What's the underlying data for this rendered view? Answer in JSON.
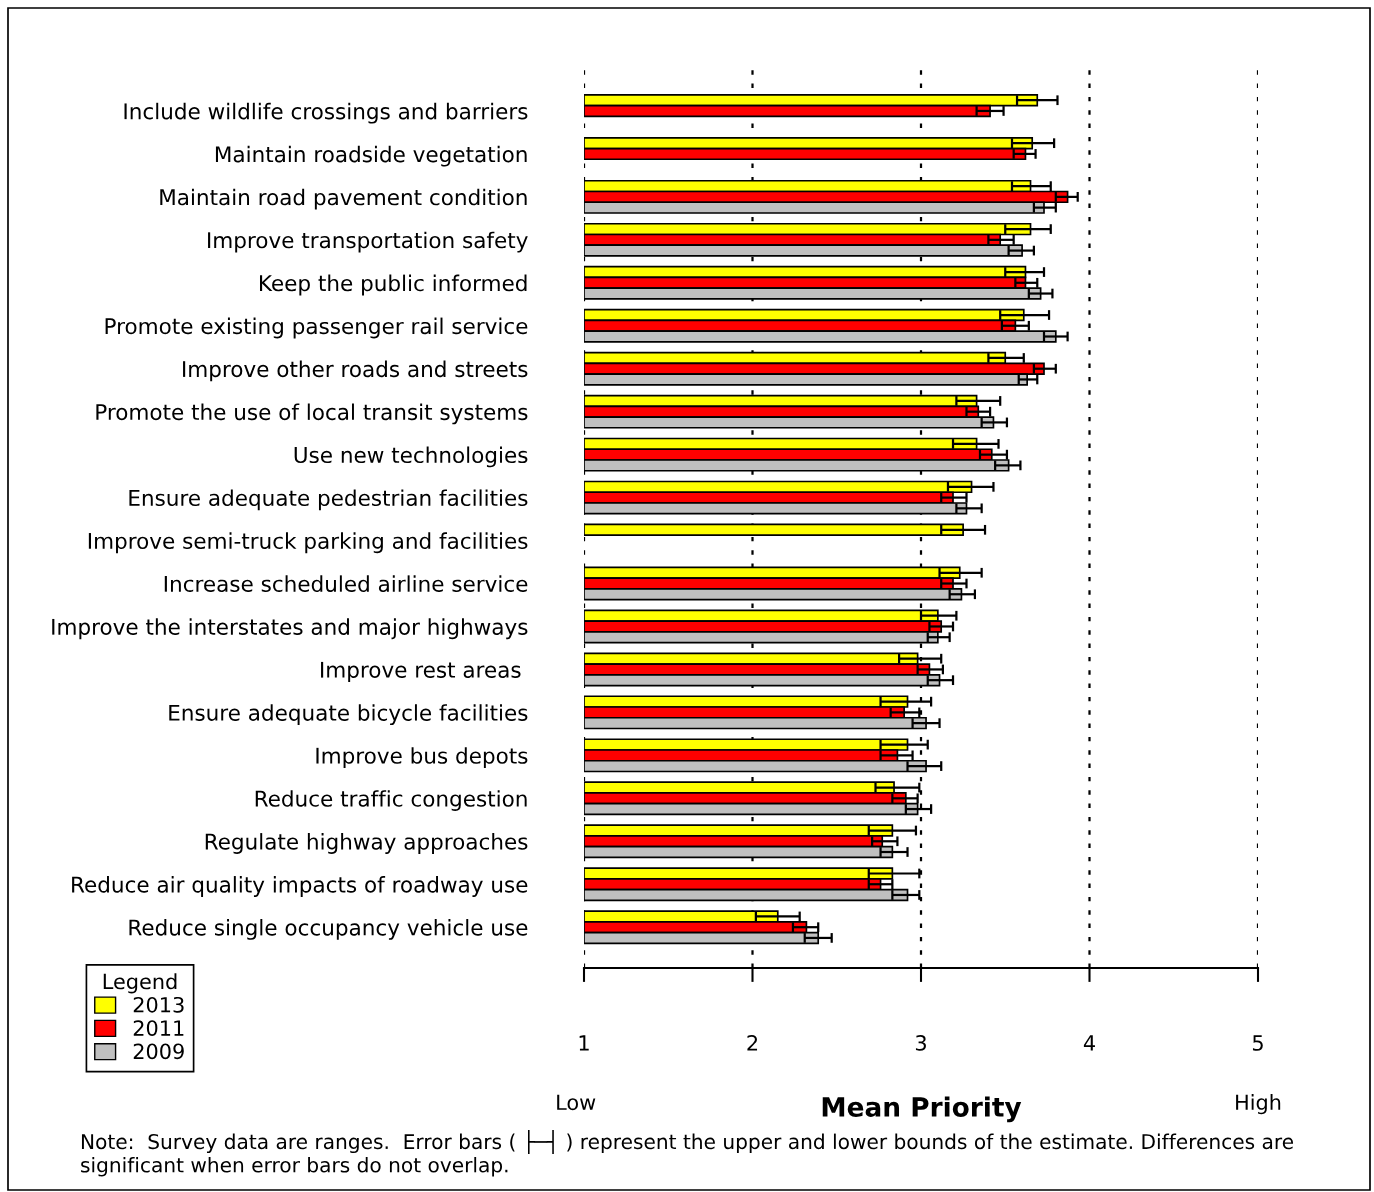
{
  "chart_data": {
    "type": "bar",
    "orientation": "horizontal",
    "xlabel": "Mean Priority",
    "legend_title": "Legend",
    "legend": "bottom left",
    "grid": "x",
    "categories": [
      "Include wildlife crossings and barriers",
      "Maintain roadside vegetation",
      "Maintain road pavement condition",
      "Improve transportation safety",
      "Keep the public informed",
      "Promote existing passenger rail service",
      "Improve other roads and streets",
      "Promote the use of local transit systems",
      "Use new technologies",
      "Ensure adequate pedestrian facilities",
      "Improve semi-truck parking and facilities",
      "Increase scheduled airline service",
      "Improve the interstates and major highways",
      "Improve rest areas ",
      "Ensure adequate bicycle facilities",
      "Improve bus depots",
      "Reduce traffic congestion",
      "Regulate highway approaches",
      "Reduce air quality impacts of roadway use",
      "Reduce single occupancy vehicle use"
    ],
    "xlim": [
      1,
      5
    ],
    "xticks": [
      1,
      2,
      3,
      4,
      5
    ],
    "series": [
      {
        "name": "2013",
        "color": "#ffff00",
        "values": [
          3.69,
          3.66,
          3.65,
          3.65,
          3.62,
          3.61,
          3.5,
          3.33,
          3.33,
          3.3,
          3.25,
          3.23,
          3.1,
          2.98,
          2.92,
          2.92,
          2.84,
          2.83,
          2.83,
          2.15
        ],
        "errors": [
          [
            3.57,
            3.81
          ],
          [
            3.54,
            3.79
          ],
          [
            3.54,
            3.77
          ],
          [
            3.5,
            3.77
          ],
          [
            3.5,
            3.73
          ],
          [
            3.47,
            3.76
          ],
          [
            3.4,
            3.61
          ],
          [
            3.21,
            3.47
          ],
          [
            3.19,
            3.46
          ],
          [
            3.16,
            3.43
          ],
          [
            3.12,
            3.38
          ],
          [
            3.11,
            3.36
          ],
          [
            3.0,
            3.21
          ],
          [
            2.87,
            3.12
          ],
          [
            2.76,
            3.06
          ],
          [
            2.76,
            3.04
          ],
          [
            2.73,
            2.99
          ],
          [
            2.69,
            2.97
          ],
          [
            2.69,
            2.99
          ],
          [
            2.02,
            2.28
          ]
        ]
      },
      {
        "name": "2011",
        "color": "#ff0000",
        "values": [
          3.41,
          3.62,
          3.87,
          3.47,
          3.62,
          3.56,
          3.73,
          3.34,
          3.42,
          3.19,
          null,
          3.19,
          3.12,
          3.05,
          2.9,
          2.86,
          2.91,
          2.77,
          2.76,
          2.32
        ],
        "errors": [
          [
            3.33,
            3.49
          ],
          [
            3.55,
            3.68
          ],
          [
            3.8,
            3.93
          ],
          [
            3.4,
            3.55
          ],
          [
            3.56,
            3.69
          ],
          [
            3.48,
            3.64
          ],
          [
            3.67,
            3.8
          ],
          [
            3.27,
            3.41
          ],
          [
            3.35,
            3.51
          ],
          [
            3.12,
            3.27
          ],
          null,
          [
            3.12,
            3.27
          ],
          [
            3.05,
            3.19
          ],
          [
            2.98,
            3.13
          ],
          [
            2.82,
            2.99
          ],
          [
            2.76,
            2.95
          ],
          [
            2.83,
            2.98
          ],
          [
            2.71,
            2.86
          ],
          [
            2.69,
            2.83
          ],
          [
            2.24,
            2.39
          ]
        ]
      },
      {
        "name": "2009",
        "color": "#c0c0c0",
        "values": [
          null,
          null,
          3.73,
          3.6,
          3.71,
          3.8,
          3.63,
          3.43,
          3.52,
          3.27,
          null,
          3.24,
          3.1,
          3.11,
          3.03,
          3.03,
          2.98,
          2.83,
          2.92,
          2.39
        ],
        "errors": [
          null,
          null,
          [
            3.67,
            3.8
          ],
          [
            3.52,
            3.67
          ],
          [
            3.64,
            3.78
          ],
          [
            3.73,
            3.87
          ],
          [
            3.58,
            3.69
          ],
          [
            3.36,
            3.51
          ],
          [
            3.44,
            3.59
          ],
          [
            3.21,
            3.36
          ],
          null,
          [
            3.17,
            3.32
          ],
          [
            3.04,
            3.17
          ],
          [
            3.04,
            3.19
          ],
          [
            2.95,
            3.11
          ],
          [
            2.92,
            3.12
          ],
          [
            2.91,
            3.06
          ],
          [
            2.76,
            2.92
          ],
          [
            2.83,
            2.99
          ],
          [
            2.31,
            2.47
          ]
        ]
      }
    ],
    "annotations": [
      "Low",
      "High",
      "Note:  Survey data are ranges.  Error bars ( ├─┤ ) represent the upper and lower bounds of the estimate. Differences are significant when error bars do not overlap."
    ]
  }
}
